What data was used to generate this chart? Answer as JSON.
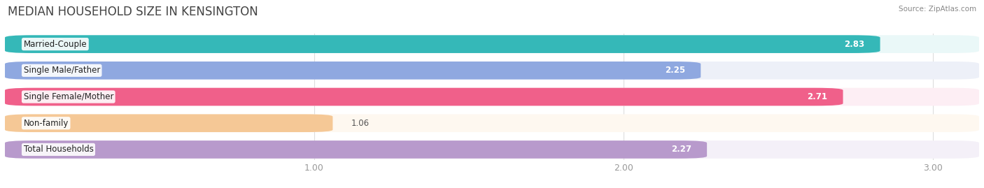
{
  "title": "MEDIAN HOUSEHOLD SIZE IN KENSINGTON",
  "source": "Source: ZipAtlas.com",
  "categories": [
    "Married-Couple",
    "Single Male/Father",
    "Single Female/Mother",
    "Non-family",
    "Total Households"
  ],
  "values": [
    2.83,
    2.25,
    2.71,
    1.06,
    2.27
  ],
  "bar_colors": [
    "#35b8b8",
    "#8fa8e0",
    "#f0608a",
    "#f5c896",
    "#b89acc"
  ],
  "bar_bg_colors": [
    "#eaf8f8",
    "#edf0f8",
    "#fdeef4",
    "#fef8f0",
    "#f4f0f8"
  ],
  "xlim_min": 0,
  "xlim_max": 3.15,
  "bar_max": 3.15,
  "xticks": [
    1.0,
    2.0,
    3.0
  ],
  "title_fontsize": 12,
  "label_fontsize": 8.5,
  "value_fontsize": 8.5,
  "background_color": "#ffffff",
  "grid_color": "#dddddd",
  "tick_color": "#999999"
}
